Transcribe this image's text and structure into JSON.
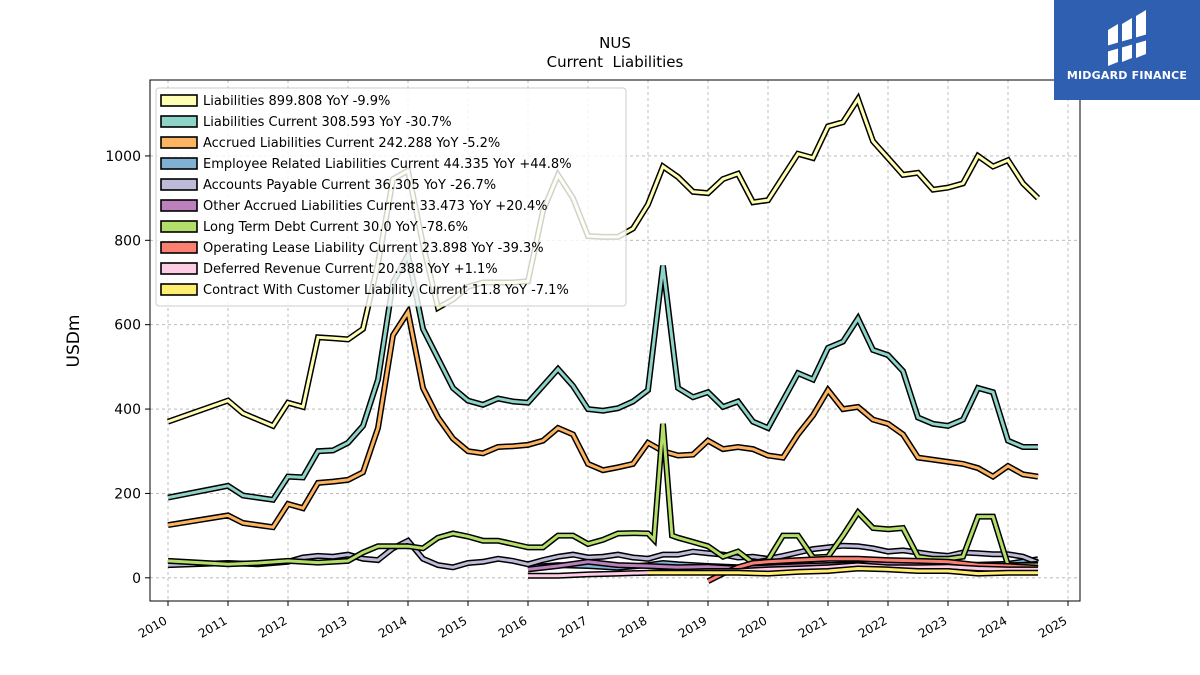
{
  "brand": {
    "name": "MIDGARD FINANCE",
    "color": "#2f5fb0"
  },
  "chart_data": {
    "type": "line",
    "title": "NUS",
    "subtitle": "Current  Liabilities",
    "ylabel": "USDm",
    "xlabel": "",
    "xlim": [
      2009.7,
      2025.2
    ],
    "ylim": [
      -55,
      1180
    ],
    "xticks": [
      "2010",
      "2011",
      "2012",
      "2013",
      "2014",
      "2015",
      "2016",
      "2017",
      "2018",
      "2019",
      "2020",
      "2021",
      "2022",
      "2023",
      "2024",
      "2025"
    ],
    "yticks": [
      "0",
      "200",
      "400",
      "600",
      "800",
      "1000"
    ],
    "grid": true,
    "legend_position": "top-left",
    "series": [
      {
        "name": "Liabilities  899.808 YoY -9.9%",
        "color": "#ffffb3",
        "x": [
          2010.0,
          2011.0,
          2011.25,
          2011.5,
          2011.75,
          2012.0,
          2012.25,
          2012.5,
          2012.75,
          2013.0,
          2013.25,
          2013.5,
          2013.75,
          2014.0,
          2014.25,
          2014.5,
          2014.75,
          2015.0,
          2015.25,
          2015.5,
          2015.75,
          2016.0,
          2016.25,
          2016.5,
          2016.75,
          2017.0,
          2017.25,
          2017.5,
          2017.75,
          2018.0,
          2018.25,
          2018.5,
          2018.75,
          2019.0,
          2019.25,
          2019.5,
          2019.75,
          2020.0,
          2020.25,
          2020.5,
          2020.75,
          2021.0,
          2021.25,
          2021.5,
          2021.75,
          2022.0,
          2022.25,
          2022.5,
          2022.75,
          2023.0,
          2023.25,
          2023.5,
          2023.75,
          2024.0,
          2024.25,
          2024.5
        ],
        "y": [
          370,
          420,
          390,
          375,
          360,
          415,
          405,
          570,
          568,
          565,
          590,
          745,
          945,
          965,
          790,
          640,
          660,
          690,
          700,
          700,
          700,
          703,
          870,
          955,
          900,
          810,
          808,
          808,
          828,
          885,
          975,
          950,
          915,
          912,
          945,
          958,
          890,
          895,
          950,
          1005,
          995,
          1070,
          1080,
          1135,
          1035,
          995,
          955,
          960,
          920,
          925,
          935,
          1000,
          975,
          990,
          935,
          900
        ]
      },
      {
        "name": "Liabilities Current  308.593 YoY -30.7%",
        "color": "#8dd3c7",
        "x": [
          2010.0,
          2011.0,
          2011.25,
          2011.5,
          2011.75,
          2012.0,
          2012.25,
          2012.5,
          2012.75,
          2013.0,
          2013.25,
          2013.5,
          2013.75,
          2014.0,
          2014.25,
          2014.5,
          2014.75,
          2015.0,
          2015.25,
          2015.5,
          2015.75,
          2016.0,
          2016.25,
          2016.5,
          2016.75,
          2017.0,
          2017.25,
          2017.5,
          2017.75,
          2018.0,
          2018.25,
          2018.5,
          2018.75,
          2019.0,
          2019.25,
          2019.5,
          2019.75,
          2020.0,
          2020.25,
          2020.5,
          2020.75,
          2021.0,
          2021.25,
          2021.5,
          2021.75,
          2022.0,
          2022.25,
          2022.5,
          2022.75,
          2023.0,
          2023.25,
          2023.5,
          2023.75,
          2024.0,
          2024.25,
          2024.5
        ],
        "y": [
          190,
          218,
          195,
          190,
          185,
          240,
          238,
          300,
          302,
          320,
          360,
          470,
          700,
          765,
          590,
          520,
          450,
          420,
          410,
          425,
          418,
          415,
          455,
          495,
          455,
          400,
          396,
          402,
          418,
          445,
          740,
          450,
          428,
          440,
          405,
          418,
          370,
          355,
          420,
          485,
          470,
          545,
          560,
          615,
          540,
          528,
          490,
          380,
          365,
          360,
          375,
          450,
          440,
          325,
          310,
          310
        ]
      },
      {
        "name": "Accrued Liabilities Current  242.288 YoY -5.2%",
        "color": "#fdb462",
        "x": [
          2010.0,
          2011.0,
          2011.25,
          2011.5,
          2011.75,
          2012.0,
          2012.25,
          2012.5,
          2012.75,
          2013.0,
          2013.25,
          2013.5,
          2013.75,
          2014.0,
          2014.25,
          2014.5,
          2014.75,
          2015.0,
          2015.25,
          2015.5,
          2015.75,
          2016.0,
          2016.25,
          2016.5,
          2016.75,
          2017.0,
          2017.25,
          2017.5,
          2017.75,
          2018.0,
          2018.25,
          2018.5,
          2018.75,
          2019.0,
          2019.25,
          2019.5,
          2019.75,
          2020.0,
          2020.25,
          2020.5,
          2020.75,
          2021.0,
          2021.25,
          2021.5,
          2021.75,
          2022.0,
          2022.25,
          2022.5,
          2022.75,
          2023.0,
          2023.25,
          2023.5,
          2023.75,
          2024.0,
          2024.25,
          2024.5
        ],
        "y": [
          125,
          148,
          130,
          125,
          120,
          175,
          165,
          225,
          228,
          232,
          250,
          355,
          575,
          630,
          450,
          380,
          330,
          300,
          295,
          310,
          312,
          315,
          325,
          355,
          340,
          270,
          255,
          262,
          270,
          320,
          300,
          290,
          292,
          325,
          305,
          310,
          305,
          290,
          285,
          340,
          385,
          445,
          400,
          405,
          375,
          365,
          340,
          285,
          280,
          275,
          270,
          260,
          240,
          265,
          245,
          240
        ]
      },
      {
        "name": "Employee Related Liabilities Current  44.335 YoY +44.8%",
        "color": "#80b1d3",
        "x": [
          2016.0,
          2016.5,
          2017.0,
          2017.5,
          2018.0,
          2018.25,
          2018.5,
          2018.75,
          2019.0,
          2019.5,
          2020.0,
          2020.5,
          2021.0,
          2021.5,
          2022.0,
          2022.5,
          2023.0,
          2023.5,
          2024.0,
          2024.5
        ],
        "y": [
          25,
          30,
          28,
          24,
          30,
          35,
          32,
          30,
          28,
          25,
          22,
          28,
          30,
          33,
          30,
          32,
          30,
          31,
          33,
          44
        ]
      },
      {
        "name": "Accounts Payable Current  36.305 YoY -26.7%",
        "color": "#bebada",
        "x": [
          2010.0,
          2011.0,
          2011.5,
          2012.0,
          2012.25,
          2012.5,
          2012.75,
          2013.0,
          2013.25,
          2013.5,
          2013.75,
          2014.0,
          2014.25,
          2014.5,
          2014.75,
          2015.0,
          2015.25,
          2015.5,
          2015.75,
          2016.0,
          2016.25,
          2016.5,
          2016.75,
          2017.0,
          2017.25,
          2017.5,
          2017.75,
          2018.0,
          2018.25,
          2018.5,
          2018.75,
          2019.0,
          2019.25,
          2019.5,
          2019.75,
          2020.0,
          2020.25,
          2020.5,
          2020.75,
          2021.0,
          2021.25,
          2021.5,
          2021.75,
          2022.0,
          2022.25,
          2022.5,
          2022.75,
          2023.0,
          2023.25,
          2023.5,
          2023.75,
          2024.0,
          2024.25,
          2024.5
        ],
        "y": [
          30,
          35,
          32,
          38,
          48,
          52,
          50,
          55,
          45,
          42,
          70,
          88,
          45,
          30,
          25,
          35,
          38,
          45,
          40,
          32,
          42,
          50,
          55,
          48,
          50,
          55,
          48,
          45,
          55,
          55,
          62,
          58,
          55,
          48,
          50,
          45,
          52,
          60,
          68,
          72,
          76,
          75,
          70,
          62,
          65,
          60,
          55,
          52,
          60,
          58,
          56,
          56,
          50,
          36
        ]
      },
      {
        "name": "Other Accrued Liabilities Current  33.473 YoY +20.4%",
        "color": "#bc80bd",
        "x": [
          2016.0,
          2016.5,
          2017.0,
          2017.5,
          2018.0,
          2018.5,
          2019.0,
          2019.5,
          2020.0,
          2020.5,
          2021.0,
          2021.5,
          2022.0,
          2022.5,
          2023.0,
          2023.5,
          2024.0,
          2024.5
        ],
        "y": [
          20,
          28,
          38,
          30,
          28,
          25,
          26,
          22,
          25,
          28,
          30,
          32,
          35,
          30,
          28,
          30,
          28,
          33
        ]
      },
      {
        "name": "Long Term Debt Current  30.0 YoY -78.6%",
        "color": "#b3de69",
        "x": [
          2010.0,
          2011.0,
          2011.5,
          2012.0,
          2012.5,
          2013.0,
          2013.25,
          2013.5,
          2013.75,
          2014.0,
          2014.25,
          2014.5,
          2014.75,
          2015.0,
          2015.25,
          2015.5,
          2015.75,
          2016.0,
          2016.25,
          2016.5,
          2016.75,
          2017.0,
          2017.25,
          2017.5,
          2017.75,
          2018.0,
          2018.1,
          2018.25,
          2018.4,
          2018.5,
          2018.75,
          2019.0,
          2019.25,
          2019.5,
          2019.75,
          2020.0,
          2020.25,
          2020.5,
          2020.75,
          2021.0,
          2021.25,
          2021.5,
          2021.75,
          2022.0,
          2022.25,
          2022.5,
          2022.75,
          2023.0,
          2023.25,
          2023.5,
          2023.75,
          2024.0,
          2024.25,
          2024.5
        ],
        "y": [
          40,
          32,
          35,
          40,
          36,
          40,
          60,
          75,
          75,
          75,
          70,
          95,
          105,
          98,
          88,
          88,
          80,
          72,
          72,
          100,
          100,
          80,
          90,
          105,
          106,
          105,
          90,
          365,
          100,
          95,
          85,
          75,
          50,
          62,
          35,
          42,
          100,
          100,
          48,
          50,
          100,
          155,
          118,
          115,
          118,
          50,
          45,
          45,
          50,
          145,
          145,
          30,
          30,
          30
        ]
      },
      {
        "name": "Operating Lease Liability Current  23.898 YoY -39.3%",
        "color": "#fb8072",
        "x": [
          2019.0,
          2019.25,
          2019.5,
          2019.75,
          2020.0,
          2020.5,
          2021.0,
          2021.5,
          2022.0,
          2022.5,
          2023.0,
          2023.5,
          2024.0,
          2024.5
        ],
        "y": [
          -8,
          10,
          25,
          35,
          38,
          42,
          45,
          45,
          42,
          40,
          38,
          30,
          28,
          24
        ]
      },
      {
        "name": "Deferred Revenue Current  20.388 YoY +1.1%",
        "color": "#fccde5",
        "x": [
          2016.0,
          2016.5,
          2017.0,
          2017.5,
          2018.0,
          2018.5,
          2019.0,
          2019.5,
          2020.0,
          2020.5,
          2021.0,
          2021.5,
          2022.0,
          2022.5,
          2023.0,
          2023.5,
          2024.0,
          2024.5
        ],
        "y": [
          5,
          5,
          8,
          10,
          12,
          14,
          16,
          16,
          20,
          22,
          25,
          30,
          25,
          25,
          26,
          22,
          20,
          20
        ]
      },
      {
        "name": "Contract With Customer Liability Current  11.8 YoY -7.1%",
        "color": "#ffed6f",
        "x": [
          2018.0,
          2018.5,
          2019.0,
          2019.5,
          2020.0,
          2020.5,
          2021.0,
          2021.5,
          2022.0,
          2022.5,
          2023.0,
          2023.5,
          2024.0,
          2024.5
        ],
        "y": [
          12,
          12,
          12,
          12,
          10,
          14,
          16,
          22,
          20,
          16,
          16,
          10,
          12,
          12
        ]
      }
    ]
  }
}
